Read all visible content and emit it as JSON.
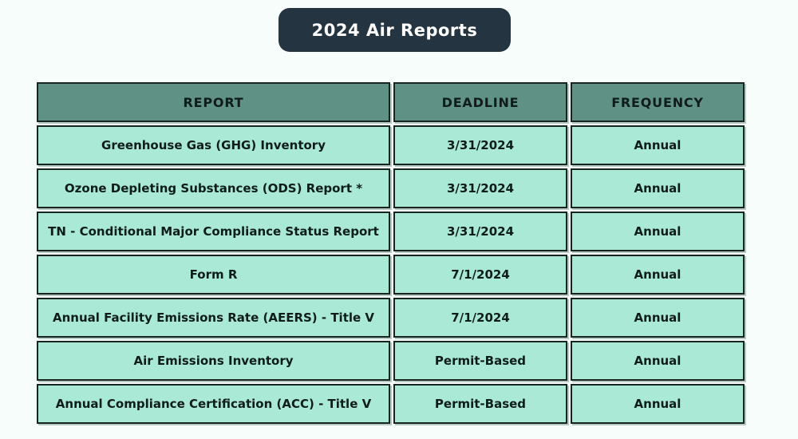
{
  "title": {
    "text": "2024 Air Reports",
    "badge_bg": "#253441",
    "text_color": "#ffffff"
  },
  "table": {
    "header_bg": "#5f9184",
    "row_bg": "#a9e9d5",
    "border_color": "#16251f",
    "headers": [
      "REPORT",
      "DEADLINE",
      "FREQUENCY"
    ],
    "rows": [
      {
        "report": "Greenhouse Gas (GHG) Inventory",
        "deadline": "3/31/2024",
        "frequency": "Annual"
      },
      {
        "report": "Ozone Depleting Substances (ODS) Report *",
        "deadline": "3/31/2024",
        "frequency": "Annual"
      },
      {
        "report": "TN - Conditional Major Compliance Status Report",
        "deadline": "3/31/2024",
        "frequency": "Annual"
      },
      {
        "report": "Form R",
        "deadline": "7/1/2024",
        "frequency": "Annual"
      },
      {
        "report": "Annual Facility Emissions Rate (AEERS) - Title V",
        "deadline": "7/1/2024",
        "frequency": "Annual"
      },
      {
        "report": "Air Emissions Inventory",
        "deadline": "Permit-Based",
        "frequency": "Annual"
      },
      {
        "report": "Annual Compliance Certification (ACC) - Title V",
        "deadline": "Permit-Based",
        "frequency": "Annual"
      }
    ]
  }
}
